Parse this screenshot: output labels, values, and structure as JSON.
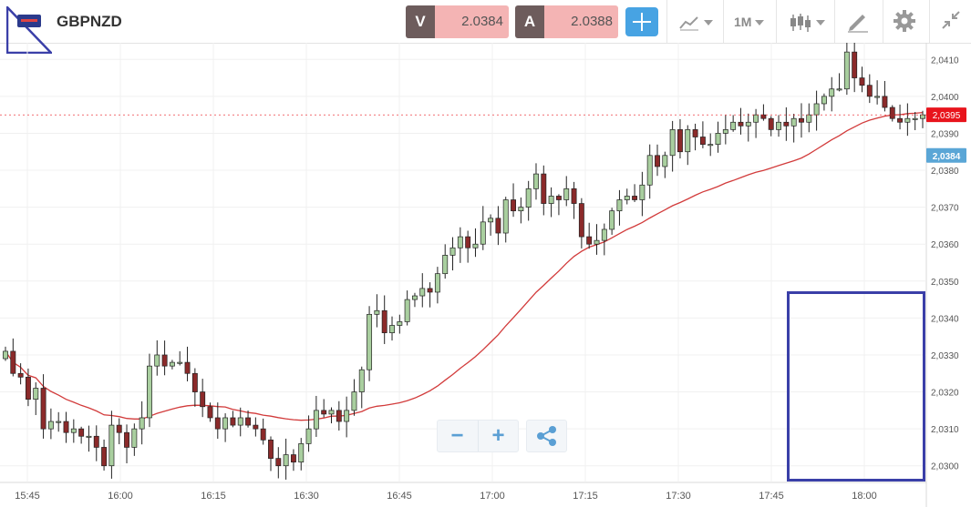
{
  "header": {
    "symbol": "GBPNZD",
    "bid_tag": "V",
    "bid_value": "2.0384",
    "ask_tag": "A",
    "ask_value": "2.0388",
    "timeframe": "1M",
    "icons": [
      "flag-icon",
      "crosshair-icon",
      "line-chart-icon",
      "candlestick-icon",
      "draw-icon",
      "gear-icon",
      "collapse-icon",
      "minus-icon",
      "plus-icon",
      "share-icon"
    ]
  },
  "colors": {
    "up": "#a9cf9f",
    "down": "#8b2a2a",
    "ma": "#d23b3b",
    "last_price_bg": "#e8141c",
    "bid_label_bg": "#5aa6d6",
    "highlight": "#3a3fa8"
  },
  "controls": {
    "zoom_out": "−",
    "zoom_in": "+"
  },
  "chart_data": {
    "type": "candlestick",
    "y_ticks": [
      "2,0300",
      "2,0310",
      "2,0320",
      "2,0330",
      "2,0340",
      "2,0350",
      "2,0360",
      "2,0370",
      "2,0380",
      "2,0390",
      "2,0400",
      "2,0410"
    ],
    "y_range": [
      2.02955,
      2.04145
    ],
    "x_ticks": [
      "15:45",
      "16:00",
      "16:15",
      "16:30",
      "16:45",
      "17:00",
      "17:15",
      "17:30",
      "17:45",
      "18:00"
    ],
    "last_price_label": "2,0395",
    "last_price_value": 2.0395,
    "bid_label": "2,0384",
    "bid_value": 2.0384,
    "closes": [
      2.0331,
      2.0325,
      2.0324,
      2.0318,
      2.0321,
      2.031,
      2.0312,
      2.0312,
      2.0309,
      2.031,
      2.0308,
      2.0308,
      2.0305,
      2.03,
      2.0311,
      2.0309,
      2.0305,
      2.031,
      2.0313,
      2.0327,
      2.033,
      2.0327,
      2.0328,
      2.0328,
      2.0325,
      2.032,
      2.0316,
      2.0313,
      2.031,
      2.0313,
      2.0311,
      2.0313,
      2.0311,
      2.031,
      2.0307,
      2.0302,
      2.03,
      2.0303,
      2.0301,
      2.0306,
      2.031,
      2.0315,
      2.0314,
      2.0315,
      2.0312,
      2.0315,
      2.032,
      2.0326,
      2.0341,
      2.0342,
      2.0336,
      2.0338,
      2.0339,
      2.0345,
      2.0346,
      2.0348,
      2.0347,
      2.0352,
      2.0357,
      2.0359,
      2.0362,
      2.0359,
      2.036,
      2.0366,
      2.0367,
      2.0363,
      2.0372,
      2.0369,
      2.037,
      2.0375,
      2.0379,
      2.0371,
      2.0373,
      2.0372,
      2.0375,
      2.0371,
      2.0362,
      2.036,
      2.0361,
      2.0364,
      2.0369,
      2.0372,
      2.0373,
      2.0372,
      2.0376,
      2.0384,
      2.0381,
      2.0384,
      2.0391,
      2.0385,
      2.0391,
      2.0389,
      2.0387,
      2.0387,
      2.039,
      2.0391,
      2.0393,
      2.0392,
      2.0393,
      2.0395,
      2.0394,
      2.0391,
      2.0393,
      2.0392,
      2.0394,
      2.0393,
      2.0395,
      2.0398,
      2.04,
      2.0402,
      2.0402,
      2.0412,
      2.0405,
      2.0403,
      2.04,
      2.04,
      2.0397,
      2.0394,
      2.0393,
      2.0394,
      2.0394,
      2.0395
    ]
  }
}
